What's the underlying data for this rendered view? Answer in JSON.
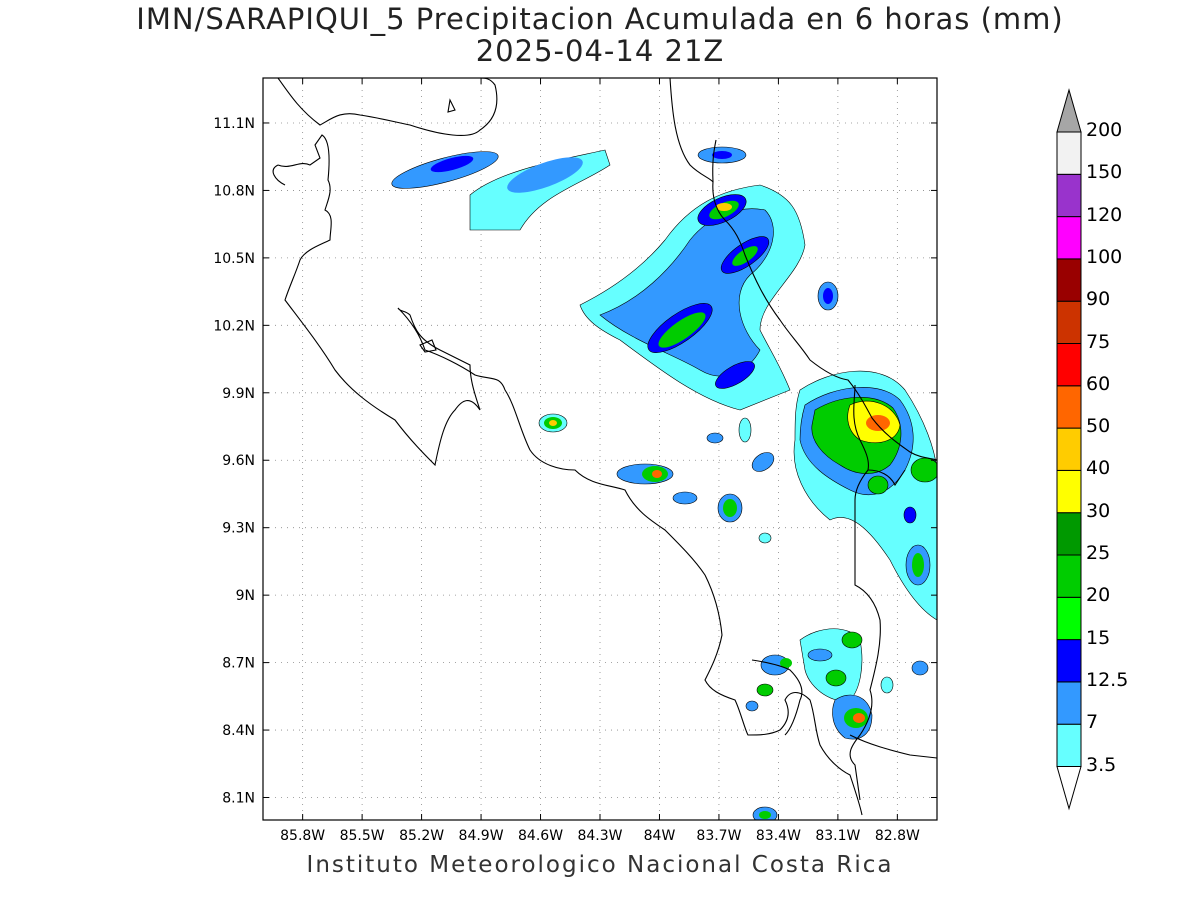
{
  "title": {
    "line1": "IMN/SARAPIQUI_5 Precipitacion Acumulada en 6 horas (mm)",
    "line2": "2025-04-14 21Z"
  },
  "footer": "Instituto Meteorologico Nacional Costa Rica",
  "map": {
    "lon_range": [
      -86.0,
      -82.6
    ],
    "lat_range": [
      8.0,
      11.3
    ],
    "lon_ticks": [
      {
        "v": -85.8,
        "label": "85.8W"
      },
      {
        "v": -85.5,
        "label": "85.5W"
      },
      {
        "v": -85.2,
        "label": "85.2W"
      },
      {
        "v": -84.9,
        "label": "84.9W"
      },
      {
        "v": -84.6,
        "label": "84.6W"
      },
      {
        "v": -84.3,
        "label": "84.3W"
      },
      {
        "v": -84.0,
        "label": "84W"
      },
      {
        "v": -83.7,
        "label": "83.7W"
      },
      {
        "v": -83.4,
        "label": "83.4W"
      },
      {
        "v": -83.1,
        "label": "83.1W"
      },
      {
        "v": -82.8,
        "label": "82.8W"
      }
    ],
    "lat_ticks": [
      {
        "v": 11.1,
        "label": "11.1N"
      },
      {
        "v": 10.8,
        "label": "10.8N"
      },
      {
        "v": 10.5,
        "label": "10.5N"
      },
      {
        "v": 10.2,
        "label": "10.2N"
      },
      {
        "v": 9.9,
        "label": "9.9N"
      },
      {
        "v": 9.6,
        "label": "9.6N"
      },
      {
        "v": 9.3,
        "label": "9.3N"
      },
      {
        "v": 9.0,
        "label": "9N"
      },
      {
        "v": 8.7,
        "label": "8.7N"
      },
      {
        "v": 8.4,
        "label": "8.4N"
      },
      {
        "v": 8.1,
        "label": "8.1N"
      }
    ],
    "grid": true
  },
  "legend": {
    "levels": [
      {
        "label": "3.5",
        "color": "#66ffff"
      },
      {
        "label": "7",
        "color": "#3399ff"
      },
      {
        "label": "12.5",
        "color": "#0000ff"
      },
      {
        "label": "15",
        "color": "#00ff00"
      },
      {
        "label": "20",
        "color": "#00cc00"
      },
      {
        "label": "25",
        "color": "#009900"
      },
      {
        "label": "30",
        "color": "#ffff00"
      },
      {
        "label": "40",
        "color": "#ffcc00"
      },
      {
        "label": "50",
        "color": "#ff6600"
      },
      {
        "label": "60",
        "color": "#ff0000"
      },
      {
        "label": "75",
        "color": "#cc3300"
      },
      {
        "label": "90",
        "color": "#990000"
      },
      {
        "label": "100",
        "color": "#ff00ff"
      },
      {
        "label": "120",
        "color": "#9933cc"
      },
      {
        "label": "150",
        "color": "#f2f2f2"
      },
      {
        "label": "200",
        "color": "#a6a6a6"
      }
    ],
    "under_color": "#ffffff",
    "over_color": "#a6a6a6"
  }
}
